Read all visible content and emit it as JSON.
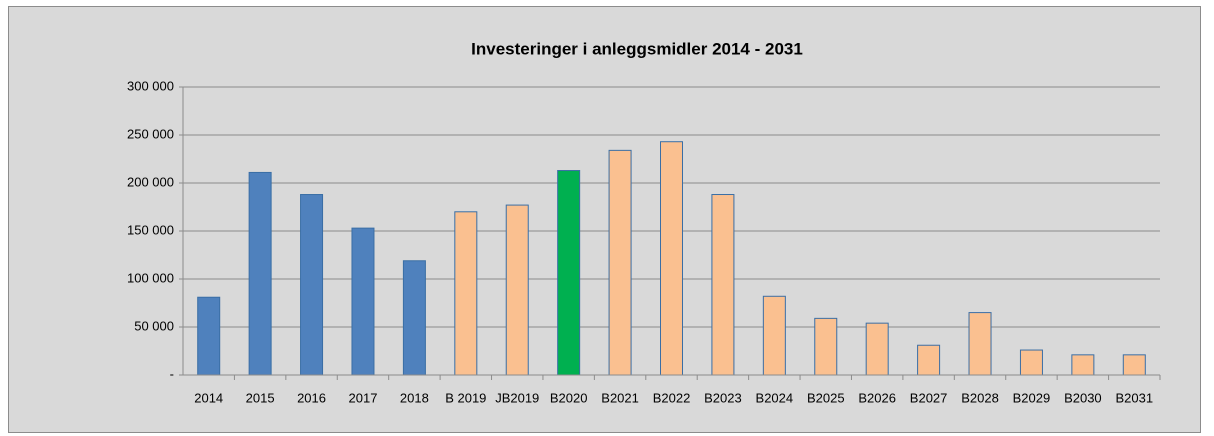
{
  "chart_data": {
    "type": "bar",
    "title": "Investeringer i anleggsmidler 2014 - 2031",
    "categories": [
      "2014",
      "2015",
      "2016",
      "2017",
      "2018",
      "B 2019",
      "JB2019",
      "B2020",
      "B2021",
      "B2022",
      "B2023",
      "B2024",
      "B2025",
      "B2026",
      "B2027",
      "B2028",
      "B2029",
      "B2030",
      "B2031"
    ],
    "values": [
      81000,
      211000,
      188000,
      153000,
      119000,
      170000,
      177000,
      213000,
      234000,
      243000,
      188000,
      82000,
      59000,
      54000,
      31000,
      65000,
      26000,
      21000,
      21000
    ],
    "colors": [
      "#4f81bd",
      "#4f81bd",
      "#4f81bd",
      "#4f81bd",
      "#4f81bd",
      "#fac090",
      "#fac090",
      "#00b050",
      "#fac090",
      "#fac090",
      "#fac090",
      "#fac090",
      "#fac090",
      "#fac090",
      "#fac090",
      "#fac090",
      "#fac090",
      "#fac090",
      "#fac090"
    ],
    "border_color": "#3a6ea5",
    "ylim": [
      0,
      300000
    ],
    "yticks": [
      {
        "value": 0,
        "label": "-"
      },
      {
        "value": 50000,
        "label": "50 000"
      },
      {
        "value": 100000,
        "label": "100 000"
      },
      {
        "value": 150000,
        "label": "150 000"
      },
      {
        "value": 200000,
        "label": "200 000"
      },
      {
        "value": 250000,
        "label": "250 000"
      },
      {
        "value": 300000,
        "label": "300 000"
      }
    ],
    "grid": true
  }
}
